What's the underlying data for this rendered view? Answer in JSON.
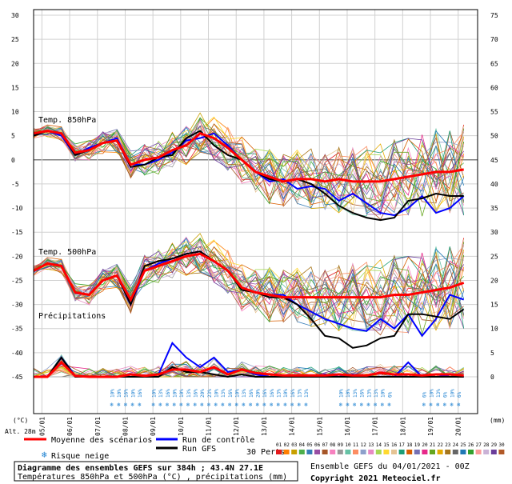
{
  "chart_data": {
    "type": "line",
    "left_axis_ticks": [
      30,
      25,
      20,
      15,
      10,
      5,
      0,
      -5,
      -10,
      -15,
      -20,
      -25,
      -30,
      -35,
      -40,
      -45
    ],
    "right_axis_ticks": [
      75,
      70,
      65,
      60,
      55,
      50,
      45,
      40,
      35,
      30,
      25,
      20,
      15,
      10,
      5,
      0
    ],
    "x_dates": [
      "05/01",
      "06/01",
      "07/01",
      "08/01",
      "09/01",
      "10/01",
      "11/01",
      "12/01",
      "13/01",
      "14/01",
      "15/01",
      "16/01",
      "17/01",
      "18/01",
      "19/01",
      "20/01"
    ],
    "left_unit": "(°C)",
    "right_unit": "(mm)",
    "altitude_label": "Alt. 28m",
    "panel_labels": {
      "t850": "Temp. 850hPa",
      "t500": "Temp. 500hPa",
      "precip": "Précipitations"
    },
    "legend": {
      "mean": "Moyenne des scénarios",
      "control": "Run de contrôle",
      "gfs": "Run GFS",
      "snow": "Risque neige",
      "perts": "30 Perts."
    },
    "pert_labels": [
      "01",
      "02",
      "03",
      "04",
      "05",
      "06",
      "07",
      "08",
      "09",
      "10",
      "11",
      "12",
      "13",
      "14",
      "15",
      "16",
      "17",
      "18",
      "19",
      "20",
      "21",
      "22",
      "23",
      "24",
      "25",
      "26",
      "27",
      "28",
      "29",
      "30"
    ],
    "pert_colors": [
      "#e41a1c",
      "#ff7f00",
      "#c8a000",
      "#4daf4a",
      "#377eb8",
      "#984ea3",
      "#a65628",
      "#f781bf",
      "#999999",
      "#66c2a5",
      "#fc8d62",
      "#8da0cb",
      "#e78ac3",
      "#a6d854",
      "#ffd92f",
      "#e5c494",
      "#1b9e77",
      "#d95f02",
      "#7570b3",
      "#e7298a",
      "#66a61e",
      "#e6ab02",
      "#a6761d",
      "#666666",
      "#1f78b4",
      "#33a02c",
      "#fb9a99",
      "#cab2d6",
      "#6a3d9a",
      "#b15928"
    ],
    "series_colors": {
      "mean": "#ff0000",
      "control": "#0000ff",
      "gfs": "#000000",
      "snow": "#1a7fd0"
    },
    "t850": {
      "x": [
        0,
        0.5,
        1,
        1.5,
        2,
        2.5,
        3,
        3.5,
        4,
        4.5,
        5,
        5.5,
        6,
        6.5,
        7,
        7.5,
        8,
        8.5,
        9,
        9.5,
        10,
        10.5,
        11,
        11.5,
        12,
        12.5,
        13,
        13.5,
        14,
        14.5,
        15,
        15.5
      ],
      "mean": [
        5.5,
        6,
        5.5,
        1.5,
        2,
        3.5,
        4,
        -1,
        0,
        0.5,
        2,
        3,
        5.5,
        4.5,
        2.5,
        0,
        -2.5,
        -3.5,
        -4.5,
        -4,
        -4,
        -4.5,
        -4,
        -4.5,
        -4.5,
        -4.5,
        -4,
        -3.5,
        -3,
        -2.5,
        -2.5,
        -2
      ],
      "control": [
        5,
        6,
        5,
        1,
        2.5,
        3.5,
        4.5,
        -1,
        -1,
        0,
        1.5,
        4,
        4.5,
        5.5,
        3,
        0,
        -2.5,
        -4.5,
        -4,
        -6,
        -5.5,
        -6,
        -8.5,
        -7,
        -9,
        -11,
        -11.5,
        -10,
        -7.5,
        -11,
        -10,
        -7.5
      ],
      "gfs": [
        5,
        6,
        5.5,
        1,
        2,
        3.5,
        4,
        -1.5,
        -1,
        0.5,
        1,
        4.5,
        6,
        3,
        1,
        0,
        -2.5,
        -4,
        -4.5,
        -4,
        -5,
        -7,
        -9.5,
        -11,
        -12,
        -12.5,
        -12,
        -8.5,
        -8,
        -7,
        -7.5,
        -7.5
      ]
    },
    "t500": {
      "x": [
        0,
        0.5,
        1,
        1.5,
        2,
        2.5,
        3,
        3.5,
        4,
        4.5,
        5,
        5.5,
        6,
        6.5,
        7,
        7.5,
        8,
        8.5,
        9,
        9.5,
        10,
        10.5,
        11,
        11.5,
        12,
        12.5,
        13,
        13.5,
        14,
        14.5,
        15,
        15.5
      ],
      "mean": [
        -23,
        -21.5,
        -22,
        -27.5,
        -28,
        -25,
        -24,
        -29,
        -23,
        -22,
        -21,
        -20,
        -19.5,
        -21,
        -23,
        -26.5,
        -27.5,
        -28,
        -28.5,
        -28.5,
        -28.5,
        -28.5,
        -28.5,
        -28.5,
        -28.5,
        -28.5,
        -28,
        -28,
        -27.5,
        -27,
        -26.5,
        -25.5
      ],
      "control": [
        -23,
        -21.5,
        -22,
        -27.5,
        -28,
        -25,
        -24,
        -30,
        -23,
        -21.5,
        -20.5,
        -19.5,
        -19,
        -21,
        -23,
        -26.5,
        -27.5,
        -28,
        -28,
        -30,
        -31.5,
        -33,
        -34,
        -35,
        -35.5,
        -33,
        -35,
        -32,
        -36.5,
        -33,
        -28,
        -29
      ],
      "gfs": [
        -23,
        -21.5,
        -22,
        -27.5,
        -28,
        -25,
        -24,
        -30,
        -22,
        -21,
        -20.5,
        -19.5,
        -19,
        -21,
        -23,
        -27,
        -27.5,
        -28.5,
        -28.5,
        -30,
        -33,
        -36.5,
        -37,
        -39,
        -38.5,
        -37,
        -36.5,
        -32,
        -32,
        -32.5,
        -33,
        -31
      ]
    },
    "precip": {
      "x": [
        0,
        0.5,
        1,
        1.5,
        2,
        2.5,
        3,
        3.5,
        4,
        4.5,
        5,
        5.5,
        6,
        6.5,
        7,
        7.5,
        8,
        8.5,
        9,
        9.5,
        10,
        10.5,
        11,
        11.5,
        12,
        12.5,
        13,
        13.5,
        14,
        14.5,
        15,
        15.5
      ],
      "mean": [
        0,
        0,
        3,
        0.2,
        0,
        0,
        0,
        0.5,
        0.2,
        0.5,
        1.5,
        1.5,
        1,
        2,
        0.5,
        1.5,
        0.8,
        0.5,
        0.3,
        0.3,
        0.3,
        0.3,
        0.5,
        0.3,
        0.3,
        0.8,
        0.5,
        0.5,
        0.3,
        0.5,
        0.5,
        0.3
      ],
      "control": [
        0,
        0,
        4,
        0.2,
        0,
        0,
        0,
        0.5,
        0,
        0.5,
        7,
        4,
        2,
        4,
        1,
        1.5,
        0.5,
        0,
        0,
        0,
        0,
        0.5,
        0,
        0.5,
        0,
        0,
        0,
        3,
        0,
        0.5,
        0,
        0
      ],
      "gfs": [
        0,
        0,
        4,
        0,
        0,
        0,
        0,
        0,
        0,
        0,
        2,
        1,
        1,
        0.5,
        0,
        0.5,
        0,
        0,
        0,
        0,
        0,
        0,
        0,
        0,
        0,
        0,
        0,
        0,
        0,
        0,
        0,
        0
      ]
    },
    "snow_days": [
      11,
      12,
      13,
      14,
      15,
      17,
      18,
      19,
      20,
      21,
      22,
      23,
      24,
      25,
      26,
      27,
      28,
      29,
      30,
      31,
      32,
      33,
      34,
      35,
      36,
      37,
      38,
      39,
      44,
      45,
      46,
      47,
      48,
      49,
      50,
      51,
      56,
      57,
      58,
      59,
      60,
      61
    ],
    "snow_pcts": [
      "10%",
      "10%",
      "16%",
      "10%",
      "16%",
      "10%",
      "13%",
      "16%",
      "10%",
      "10%",
      "13%",
      "16%",
      "20%",
      "23%",
      "10%",
      "13%",
      "16%",
      "10%",
      "13%",
      "16%",
      "20%",
      "16%",
      "16%",
      "13%",
      "10%",
      "16%",
      "13%",
      "13%",
      "10%",
      "10%",
      "13%",
      "16%",
      "13%",
      "13%",
      "10%",
      "6%",
      "6%",
      "10%",
      "13%",
      "6%",
      "10%",
      "6%"
    ]
  },
  "footer": {
    "title_line": "Diagramme des ensembles GEFS sur 384h ; 43.4N 27.1E",
    "subtitle_line": "Températures 850hPa et 500hPa (°C) , précipitations (mm)",
    "run_line": "Ensemble GEFS du 04/01/2021 - 00Z",
    "copyright": "Copyright 2021 Meteociel.fr"
  }
}
